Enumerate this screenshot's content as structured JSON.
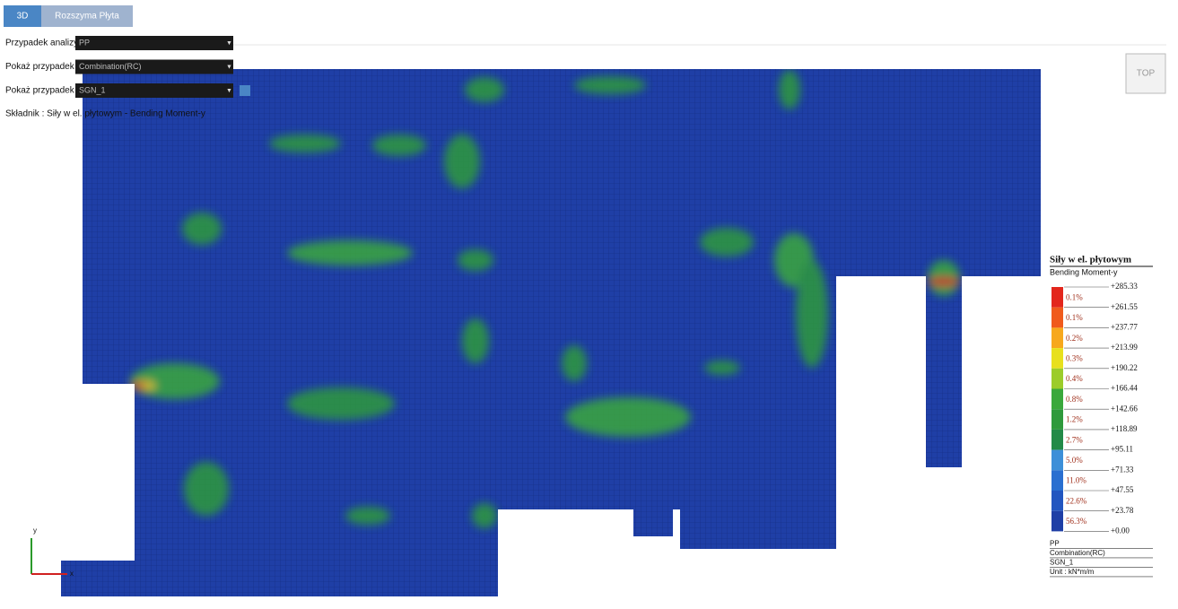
{
  "tabs": [
    "3D",
    "Rozszyma Płyta"
  ],
  "controls": [
    {
      "label": "Przypadek analizy",
      "value": "PP"
    },
    {
      "label": "Pokaż przypadek",
      "value": "Combination(RC)"
    },
    {
      "label": "Pokaż przypadek",
      "value": "SGN_1"
    }
  ],
  "component": "Składnik : Siły w el. płytowym - Bending Moment-y",
  "view_cube": "TOP",
  "axes": {
    "x": "x",
    "y": "y"
  },
  "legend": {
    "title": "Siły w el. płytowym",
    "subtitle": "Bending Moment-y",
    "levels": [
      "+285.33",
      "+261.55",
      "+237.77",
      "+213.99",
      "+190.22",
      "+166.44",
      "+142.66",
      "+118.89",
      "+95.11",
      "+71.33",
      "+47.55",
      "+23.78",
      "+0.00"
    ],
    "percents": [
      "0.1%",
      "0.1%",
      "0.2%",
      "0.3%",
      "0.4%",
      "0.8%",
      "1.2%",
      "2.7%",
      "5.0%",
      "11.0%",
      "22.6%",
      "56.3%"
    ],
    "footer": [
      "PP",
      "Combination(RC)",
      "SGN_1",
      "Unit : kN*m/m"
    ]
  }
}
